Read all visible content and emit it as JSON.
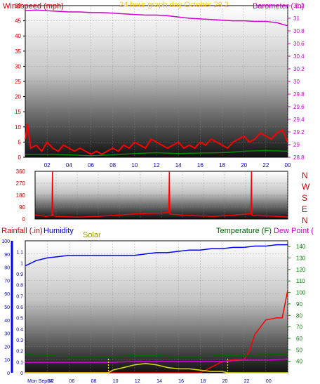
{
  "chart_data": [
    {
      "type": "line",
      "panel": "wind-barometer",
      "title": "24 hour graph day   October 29 2",
      "left_axis": {
        "label": "Windspeed (mph)",
        "range": [
          0,
          50
        ],
        "ticks": [
          "0",
          "5",
          "10",
          "15",
          "20",
          "25",
          "30",
          "35",
          "40",
          "45",
          "50"
        ],
        "color": "#cc0000"
      },
      "right_axis": {
        "label": "Barometer ( in)",
        "range": [
          28.8,
          31.2
        ],
        "ticks": [
          "28.8",
          "29",
          "29.2",
          "29.4",
          "29.6",
          "29.8",
          "30",
          "30.2",
          "30.4",
          "30.6",
          "30.8",
          "31",
          "31.2"
        ],
        "color": "#cc00cc"
      },
      "x_ticks": [
        "02",
        "04",
        "06",
        "08",
        "10",
        "12",
        "14",
        "16",
        "18",
        "20",
        "22",
        "00"
      ],
      "x_range": [
        0,
        24
      ],
      "grid": true,
      "series": [
        {
          "axis": "right",
          "color": "#d200d2",
          "x": [
            0,
            1,
            2,
            3,
            4,
            5,
            6,
            7,
            8,
            9,
            10,
            11,
            12,
            13,
            14,
            15,
            16,
            17,
            18,
            19,
            20,
            21,
            22,
            23,
            24
          ],
          "values": [
            31.12,
            31.13,
            31.12,
            31.11,
            31.1,
            31.1,
            31.09,
            31.09,
            31.08,
            31.07,
            31.06,
            31.05,
            31.05,
            31.04,
            31.02,
            31.0,
            30.99,
            30.98,
            30.97,
            30.96,
            30.96,
            30.95,
            30.95,
            30.93,
            30.88
          ]
        },
        {
          "axis": "left",
          "color": "#ff0000",
          "label_series": "wind gust",
          "x": [
            0,
            0.2,
            0.5,
            1,
            1.5,
            2,
            2.5,
            3,
            3.5,
            4,
            4.5,
            5,
            5.5,
            6,
            6.5,
            7,
            7.5,
            8,
            8.5,
            9,
            9.5,
            10,
            10.5,
            11,
            11.5,
            12,
            12.5,
            13,
            13.5,
            14,
            14.5,
            15,
            15.5,
            16,
            16.5,
            17,
            17.5,
            18,
            18.5,
            19,
            19.5,
            20,
            20.5,
            21,
            21.5,
            22,
            22.5,
            23,
            23.5,
            24
          ],
          "values": [
            6,
            11,
            3,
            4,
            2,
            5,
            3,
            2,
            4,
            3,
            2,
            3,
            2,
            1,
            2,
            1,
            2,
            3,
            2,
            4,
            3,
            5,
            4,
            3,
            6,
            5,
            4,
            3,
            4,
            5,
            3,
            4,
            3,
            5,
            4,
            6,
            5,
            4,
            3,
            5,
            6,
            7,
            5,
            6,
            8,
            7,
            6,
            8,
            9,
            5
          ]
        },
        {
          "axis": "left",
          "color": "#008800",
          "label_series": "wind average",
          "x": [
            0,
            2,
            4,
            6,
            8,
            10,
            12,
            14,
            16,
            18,
            20,
            22,
            24
          ],
          "values": [
            1,
            1,
            0.8,
            0.5,
            0.8,
            1.2,
            1.5,
            1.2,
            1.4,
            1.5,
            2,
            2.2,
            2
          ]
        }
      ]
    },
    {
      "type": "line",
      "panel": "wind-direction",
      "left_axis": {
        "range": [
          0,
          360
        ],
        "ticks": [
          "0",
          "90",
          "180",
          "270",
          "360"
        ],
        "color": "#cc0000"
      },
      "right_labels": [
        "N",
        "W",
        "S",
        "E",
        "N"
      ],
      "x_range": [
        0,
        24
      ],
      "series": [
        {
          "color": "#ff0000",
          "x": [
            0,
            1,
            1.6,
            1.65,
            1.7,
            2,
            4,
            6,
            8,
            10,
            12,
            12.7,
            12.75,
            12.8,
            13,
            15,
            17,
            19,
            20.5,
            20.55,
            20.6,
            21,
            23,
            24
          ],
          "values": [
            30,
            20,
            25,
            360,
            25,
            20,
            15,
            20,
            30,
            40,
            45,
            50,
            360,
            40,
            35,
            25,
            20,
            30,
            40,
            360,
            30,
            25,
            20,
            15
          ]
        }
      ]
    },
    {
      "type": "line",
      "panel": "rain-humidity-temp",
      "legend": [
        "Rainfall (.in)",
        "Humidity",
        "Solar",
        "Temperature (F)",
        "Dew Point ("
      ],
      "left_axis_humidity": {
        "range": [
          0,
          100
        ],
        "ticks": [
          "0",
          "10",
          "20",
          "30",
          "40",
          "50",
          "60",
          "70",
          "80",
          "90",
          "100"
        ],
        "color": "#0000cc"
      },
      "left_axis_rain": {
        "range": [
          0,
          1.2
        ],
        "ticks": [
          "0",
          "0.1",
          "0.2",
          "0.3",
          "0.4",
          "0.5",
          "0.6",
          "0.7",
          "0.8",
          "0.9",
          "1",
          "1.1"
        ],
        "color": "#cc0000"
      },
      "right_axis": {
        "label": "Temperature (F)",
        "range": [
          30,
          145
        ],
        "ticks": [
          "40",
          "50",
          "60",
          "70",
          "80",
          "90",
          "100",
          "110",
          "120",
          "130",
          "140"
        ],
        "color": "#008800"
      },
      "x_ticks": [
        "Mon Sep 02",
        "04",
        "06",
        "08",
        "10",
        "12",
        "14",
        "16",
        "18",
        "20",
        "22",
        "00"
      ],
      "x_range": [
        0,
        24
      ],
      "grid": true,
      "series": [
        {
          "name": "Humidity",
          "axis": "humidity",
          "color": "#0000ff",
          "x": [
            0,
            0.5,
            1,
            2,
            3,
            4,
            5,
            6,
            7,
            8,
            9,
            10,
            11,
            12,
            13,
            14,
            15,
            16,
            17,
            18,
            19,
            20,
            21,
            22,
            23,
            24
          ],
          "values": [
            81,
            83,
            85,
            87,
            88,
            89,
            89,
            89,
            89,
            89,
            89,
            89,
            90,
            91,
            91,
            92,
            93,
            93,
            94,
            94,
            95,
            95,
            96,
            96,
            97,
            97
          ]
        },
        {
          "name": "Rainfall (.in)",
          "axis": "rain",
          "color": "#ff0000",
          "x": [
            0,
            16,
            18,
            19,
            20,
            20.5,
            21,
            22,
            23,
            23.5,
            24
          ],
          "values": [
            0,
            0,
            0.1,
            0.12,
            0.12,
            0.2,
            0.35,
            0.48,
            0.5,
            0.5,
            0.75
          ]
        },
        {
          "name": "Temperature (F)",
          "axis": "right",
          "color": "#006600",
          "x": [
            0,
            2,
            4,
            6,
            8,
            10,
            12,
            14,
            16,
            18,
            20,
            22,
            24
          ],
          "values": [
            46,
            45,
            44,
            44,
            44,
            45,
            45,
            44,
            44,
            45,
            45,
            46,
            46
          ]
        },
        {
          "name": "Dew Point (",
          "axis": "right",
          "color": "#cc00cc",
          "x": [
            0,
            2,
            4,
            6,
            8,
            10,
            12,
            14,
            16,
            18,
            20,
            22,
            24
          ],
          "values": [
            39,
            39,
            39,
            39,
            39,
            40,
            40,
            40,
            40,
            40,
            41,
            41,
            42
          ]
        },
        {
          "name": "Solar",
          "axis": "humidity",
          "color": "#dddd00",
          "x": [
            0,
            7.6,
            8,
            9,
            10,
            11,
            12,
            13,
            14,
            15,
            16,
            17,
            18,
            18.5,
            24
          ],
          "values": [
            0,
            0,
            2,
            4,
            6,
            7,
            6,
            4,
            3,
            3,
            2,
            1,
            1,
            0,
            0
          ]
        }
      ]
    }
  ]
}
